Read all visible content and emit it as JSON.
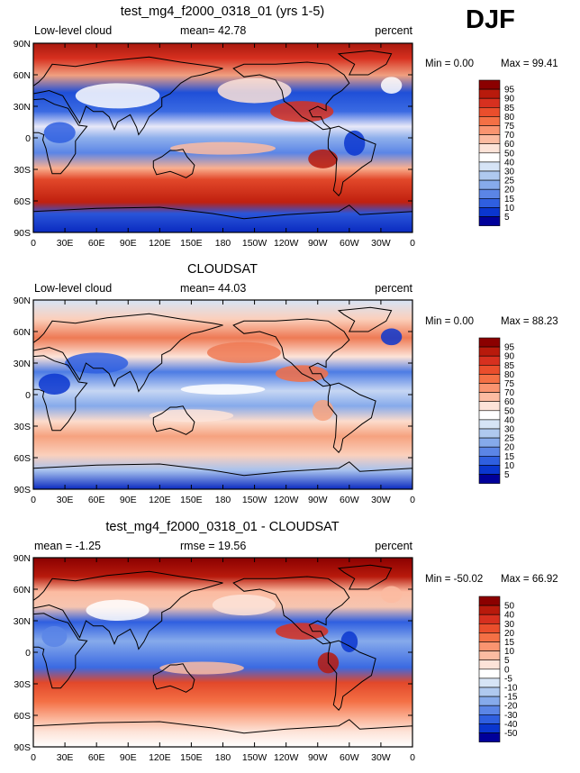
{
  "season": "DJF",
  "lat_labels": [
    "90N",
    "60N",
    "30N",
    "0",
    "30S",
    "60S",
    "90S"
  ],
  "lon_labels": [
    "0",
    "30E",
    "60E",
    "90E",
    "120E",
    "150E",
    "180",
    "150W",
    "120W",
    "90W",
    "60W",
    "30W",
    "0"
  ],
  "panels": [
    {
      "title": "test_mg4_f2000_0318_01 (yrs 1-5)",
      "left_label": "Low-level cloud",
      "mid_label": "mean=  42.78",
      "right_label": "percent",
      "min_text": "Min =    0.00",
      "max_text": "Max =  99.41",
      "colorbar_type": "abs"
    },
    {
      "title": "CLOUDSAT",
      "left_label": "Low-level cloud",
      "mid_label": "mean=  44.03",
      "right_label": "percent",
      "min_text": "Min =    0.00",
      "max_text": "Max =  88.23",
      "colorbar_type": "abs"
    },
    {
      "title": "test_mg4_f2000_0318_01 - CLOUDSAT",
      "left_label": "mean =  -1.25",
      "mid_label": "rmse =  19.56",
      "right_label": "percent",
      "min_text": "Min = -50.02",
      "max_text": "Max =  66.92",
      "colorbar_type": "diff"
    }
  ],
  "colorbars": {
    "abs": {
      "labels": [
        "95",
        "90",
        "85",
        "80",
        "75",
        "70",
        "60",
        "50",
        "40",
        "30",
        "25",
        "20",
        "15",
        "10",
        "5"
      ],
      "colors": [
        "#8b0000",
        "#b81a0c",
        "#d7301f",
        "#ea4e2c",
        "#f47045",
        "#fa9470",
        "#fcbba1",
        "#fde3d8",
        "#ffffff",
        "#d6e4f6",
        "#afc9ef",
        "#86aaeb",
        "#5b85e6",
        "#2f5fe0",
        "#0a36cf",
        "#00009a"
      ]
    },
    "diff": {
      "labels": [
        "50",
        "40",
        "30",
        "20",
        "15",
        "10",
        "5",
        "0",
        "-5",
        "-10",
        "-15",
        "-20",
        "-30",
        "-40",
        "-50"
      ],
      "colors": [
        "#8b0000",
        "#b81a0c",
        "#d7301f",
        "#ea4e2c",
        "#f47045",
        "#fa9470",
        "#fcbba1",
        "#fde3d8",
        "#ffffff",
        "#d6e4f6",
        "#afc9ef",
        "#86aaeb",
        "#5b85e6",
        "#2f5fe0",
        "#0a36cf",
        "#00009a"
      ]
    }
  }
}
